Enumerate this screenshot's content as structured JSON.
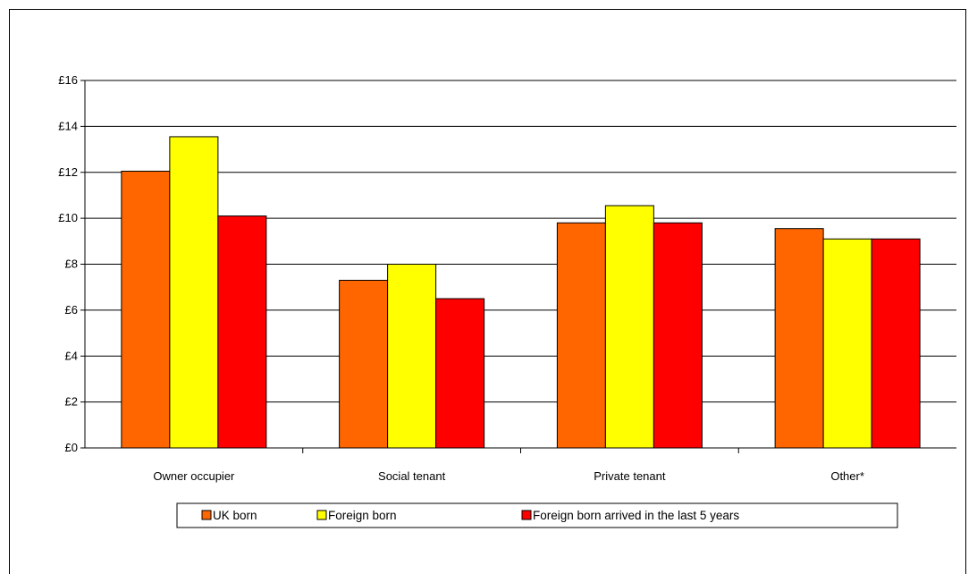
{
  "chart_data": {
    "type": "bar",
    "title": "",
    "xlabel": "",
    "ylabel": "",
    "categories": [
      "Owner occupier",
      "Social tenant",
      "Private tenant",
      "Other*"
    ],
    "series": [
      {
        "name": "UK born",
        "color": "#ff6600",
        "values": [
          12.05,
          7.3,
          9.8,
          9.55
        ]
      },
      {
        "name": "Foreign born",
        "color": "#ffff00",
        "values": [
          13.55,
          8.0,
          10.55,
          9.1
        ]
      },
      {
        "name": "Foreign born arrived in the last 5 years",
        "color": "#ff0000",
        "values": [
          10.1,
          6.5,
          9.8,
          9.1
        ]
      }
    ],
    "ylim": [
      0,
      16
    ],
    "yticks": [
      0,
      2,
      4,
      6,
      8,
      10,
      12,
      14,
      16
    ],
    "ytick_labels": [
      "£0",
      "£2",
      "£4",
      "£6",
      "£8",
      "£10",
      "£12",
      "£14",
      "£16"
    ],
    "grid": true,
    "legend_position": "bottom"
  }
}
